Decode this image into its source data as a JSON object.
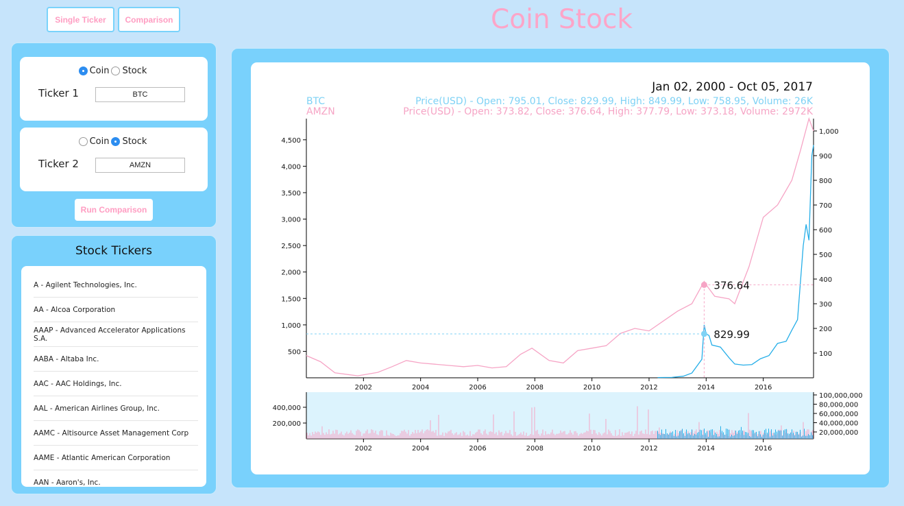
{
  "nav": {
    "single_label": "Single Ticker",
    "comparison_label": "Comparison"
  },
  "app_title": "Coin Stock",
  "ticker1": {
    "opt_coin": "Coin",
    "opt_stock": "Stock",
    "selected": "Coin",
    "label": "Ticker 1",
    "value": "BTC"
  },
  "ticker2": {
    "opt_coin": "Coin",
    "opt_stock": "Stock",
    "selected": "Stock",
    "label": "Ticker 2",
    "value": "AMZN"
  },
  "run_label": "Run Comparison",
  "stock_list": {
    "title": "Stock Tickers",
    "items": [
      "A - Agilent Technologies, Inc.",
      "AA - Alcoa Corporation",
      "AAAP - Advanced Accelerator Applications S.A.",
      "AABA - Altaba Inc.",
      "AAC - AAC Holdings, Inc.",
      "AAL - American Airlines Group, Inc.",
      "AAMC - Altisource Asset Management Corp",
      "AAME - Atlantic American Corporation",
      "AAN - Aaron's, Inc."
    ]
  },
  "colors": {
    "btc": "#7fd2f5",
    "btc_line": "#25aee8",
    "amzn": "#f6a4c5",
    "accent_pink": "#ff9dc2",
    "panel": "#79d1fc",
    "bg": "#c6e4fb"
  },
  "chart_data": {
    "type": "line",
    "date_range": "Jan 02, 2000 - Oct 05, 2017",
    "series": [
      {
        "name": "BTC",
        "axis": "right",
        "info": "Price(USD) - Open: 795.01, Close: 829.99, High: 849.99, Low: 758.95, Volume: 26K",
        "marker_value": "829.99",
        "x": [
          2012.3,
          2012.8,
          2013.2,
          2013.5,
          2013.85,
          2013.93,
          2014.0,
          2014.1,
          2014.2,
          2014.5,
          2014.8,
          2015.0,
          2015.3,
          2015.6,
          2015.9,
          2016.2,
          2016.5,
          2016.8,
          2017.0,
          2017.2,
          2017.4,
          2017.5,
          2017.6,
          2017.7,
          2017.76
        ],
        "y": [
          5,
          8,
          30,
          90,
          350,
          1000,
          829.99,
          800,
          620,
          580,
          380,
          260,
          240,
          250,
          360,
          420,
          650,
          690,
          900,
          1100,
          2500,
          2900,
          2600,
          4200,
          4400
        ]
      },
      {
        "name": "AMZN",
        "axis": "left",
        "info": "Price(USD) - Open: 373.82, Close: 376.64, High: 377.79, Low: 373.18, Volume: 2972K",
        "marker_value": "376.64",
        "x": [
          2000.0,
          2000.5,
          2001.0,
          2001.8,
          2002.5,
          2003.0,
          2003.5,
          2004.0,
          2004.5,
          2005.0,
          2005.5,
          2006.0,
          2006.5,
          2007.0,
          2007.5,
          2007.9,
          2008.5,
          2009.0,
          2009.5,
          2010.0,
          2010.5,
          2011.0,
          2011.5,
          2012.0,
          2012.5,
          2013.0,
          2013.5,
          2013.93,
          2014.0,
          2014.3,
          2014.8,
          2015.0,
          2015.5,
          2016.0,
          2016.5,
          2017.0,
          2017.3,
          2017.6,
          2017.76
        ],
        "y": [
          90,
          65,
          20,
          8,
          22,
          45,
          70,
          60,
          55,
          50,
          45,
          50,
          40,
          45,
          95,
          120,
          70,
          60,
          110,
          120,
          130,
          180,
          200,
          190,
          230,
          270,
          300,
          390,
          376.64,
          330,
          320,
          300,
          450,
          650,
          700,
          800,
          920,
          1050,
          1000
        ]
      }
    ],
    "left_axis_ticks": [
      "500",
      "1,000",
      "1,500",
      "2,000",
      "2,500",
      "3,000",
      "3,500",
      "4,000",
      "4,500"
    ],
    "right_axis_ticks": [
      "100",
      "200",
      "300",
      "400",
      "500",
      "600",
      "700",
      "800",
      "900",
      "1,000"
    ],
    "x_ticks": [
      "2002",
      "2004",
      "2006",
      "2008",
      "2010",
      "2012",
      "2014",
      "2016"
    ],
    "xlim": [
      2000.0,
      2017.76
    ],
    "left_ylim": [
      0,
      4900
    ],
    "right_ylim": [
      0,
      1050
    ],
    "volume": {
      "left_ticks": [
        "200,000",
        "400,000"
      ],
      "right_ticks": [
        "20,000,000",
        "40,000,000",
        "60,000,000",
        "80,000,000",
        "100,000,000"
      ]
    }
  }
}
